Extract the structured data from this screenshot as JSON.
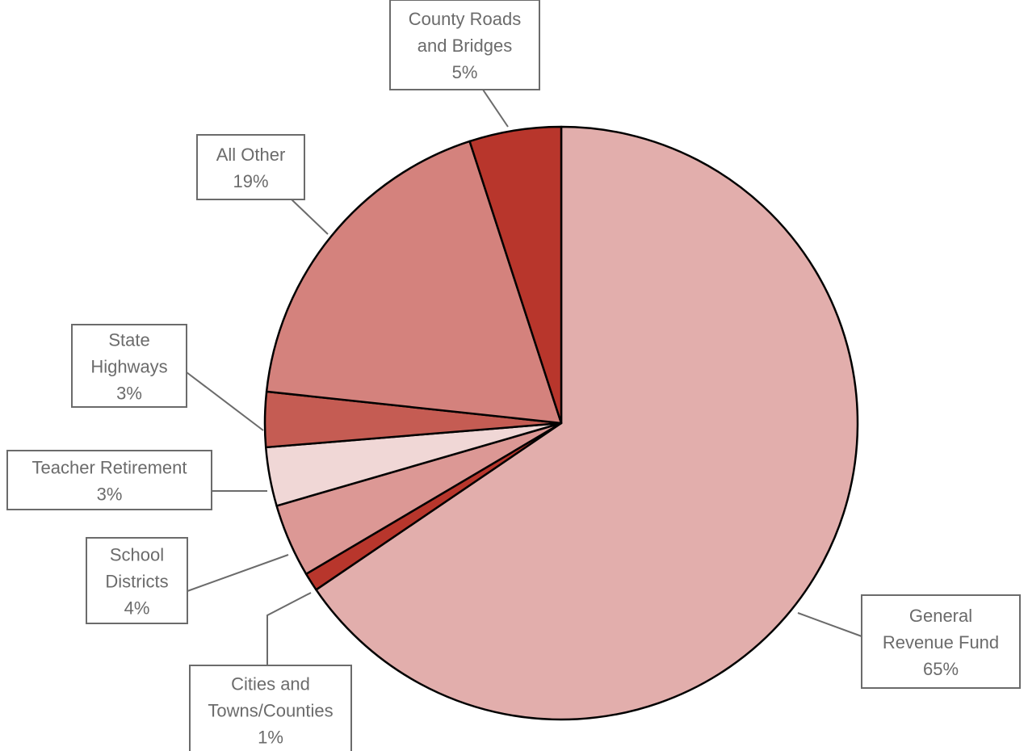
{
  "chart_data": {
    "type": "pie",
    "start_angle": "12 o'clock",
    "direction": "clockwise",
    "slices": [
      {
        "name": "General Revenue Fund",
        "lines": [
          "General",
          "Revenue Fund"
        ],
        "pct_label": "65%",
        "value": 65.5,
        "color": "#e2aeac"
      },
      {
        "name": "Cities and Towns/Counties",
        "lines": [
          "Cities and",
          "Towns/Counties"
        ],
        "pct_label": "1%",
        "value": 1.0,
        "color": "#b8362c"
      },
      {
        "name": "School Districts",
        "lines": [
          "School",
          "Districts"
        ],
        "pct_label": "4%",
        "value": 4.0,
        "color": "#dc9895"
      },
      {
        "name": "Teacher Retirement",
        "lines": [
          "Teacher Retirement"
        ],
        "pct_label": "3%",
        "value": 3.2,
        "color": "#f0d7d6"
      },
      {
        "name": "State Highways",
        "lines": [
          "State",
          "Highways"
        ],
        "pct_label": "3%",
        "value": 3.0,
        "color": "#c55c53"
      },
      {
        "name": "All Other",
        "lines": [
          "All Other"
        ],
        "pct_label": "19%",
        "value": 18.3,
        "color": "#d4827d"
      },
      {
        "name": "County Roads and Bridges",
        "lines": [
          "County Roads",
          "and Bridges"
        ],
        "pct_label": "5%",
        "value": 5.0,
        "color": "#b8362c"
      }
    ]
  }
}
